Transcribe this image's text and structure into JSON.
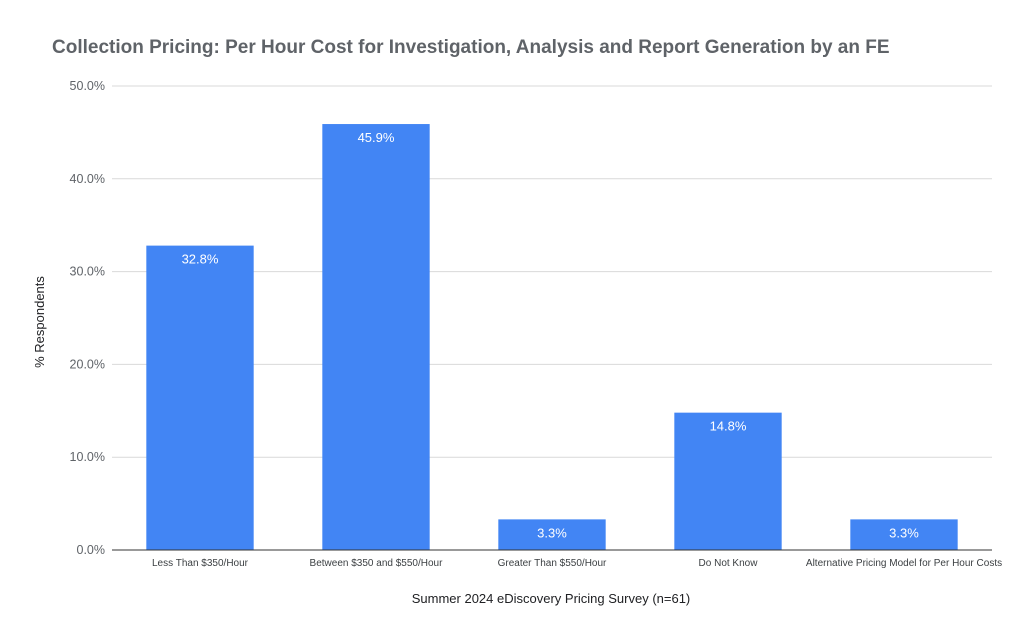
{
  "chart_data": {
    "type": "bar",
    "title": "Collection Pricing: Per Hour Cost for Investigation, Analysis and Report Generation by an FE",
    "xlabel": "Summer 2024 eDiscovery Pricing Survey (n=61)",
    "ylabel": "% Respondents",
    "categories": [
      "Less Than $350/Hour",
      "Between $350 and $550/Hour",
      "Greater Than $550/Hour",
      "Do Not Know",
      "Alternative Pricing Model for Per Hour Costs"
    ],
    "values": [
      32.8,
      45.9,
      3.3,
      14.8,
      3.3
    ],
    "data_labels": [
      "32.8%",
      "45.9%",
      "3.3%",
      "14.8%",
      "3.3%"
    ],
    "ylim": [
      0,
      50
    ],
    "yticks": [
      0,
      10,
      20,
      30,
      40,
      50
    ],
    "ytick_labels": [
      "0.0%",
      "10.0%",
      "20.0%",
      "30.0%",
      "40.0%",
      "50.0%"
    ],
    "grid": true,
    "legend": "none",
    "bar_color": "#4285f4"
  }
}
